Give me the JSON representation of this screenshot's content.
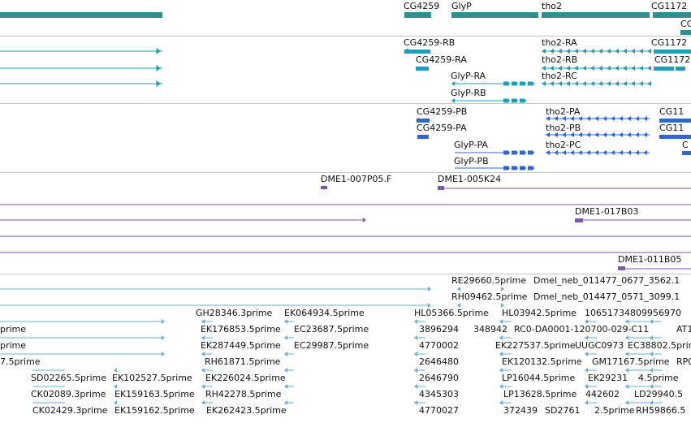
{
  "colors": {
    "gene": "#2f8f8f",
    "mrna": "#1aa0b8",
    "protein": "#3366cc",
    "clone": "#7a5aaa",
    "est": "#6aaedb",
    "separator": "#c8c8c8"
  },
  "tracks": [
    {
      "id": "genes",
      "features": [
        {
          "label": "CG4259",
          "color": "gene"
        },
        {
          "label": "GlyP",
          "color": "gene"
        },
        {
          "label": "tho2",
          "color": "gene"
        },
        {
          "label": "CG1172",
          "color": "gene"
        },
        {
          "label": "CG",
          "color": "gene"
        }
      ]
    },
    {
      "id": "transcripts",
      "features": [
        {
          "label": "CG4259-RB",
          "color": "mrna"
        },
        {
          "label": "CG4259-RA",
          "color": "mrna"
        },
        {
          "label": "GlyP-RA",
          "color": "mrna"
        },
        {
          "label": "GlyP-RB",
          "color": "mrna"
        },
        {
          "label": "tho2-RA",
          "color": "mrna"
        },
        {
          "label": "tho2-RB",
          "color": "mrna"
        },
        {
          "label": "tho2-RC",
          "color": "mrna"
        },
        {
          "label": "CG1172",
          "color": "mrna"
        },
        {
          "label": "CG1172",
          "color": "mrna"
        }
      ]
    },
    {
      "id": "proteins",
      "features": [
        {
          "label": "CG4259-PB",
          "color": "protein"
        },
        {
          "label": "CG4259-PA",
          "color": "protein"
        },
        {
          "label": "GlyP-PA",
          "color": "protein"
        },
        {
          "label": "GlyP-PB",
          "color": "protein"
        },
        {
          "label": "tho2-PA",
          "color": "protein"
        },
        {
          "label": "tho2-PB",
          "color": "protein"
        },
        {
          "label": "tho2-PC",
          "color": "protein"
        },
        {
          "label": "CG11",
          "color": "protein"
        },
        {
          "label": "CG11",
          "color": "protein"
        },
        {
          "label": "C",
          "color": "protein"
        }
      ]
    },
    {
      "id": "clones",
      "features": [
        {
          "label": "DME1-007P05.F",
          "color": "clone"
        },
        {
          "label": "DME1-005K24",
          "color": "clone"
        },
        {
          "label": "DME1-017B03",
          "color": "clone"
        },
        {
          "label": "DME1-011B05",
          "color": "clone"
        }
      ]
    },
    {
      "id": "ests",
      "features": [
        {
          "label": "RE29660.5prime",
          "color": "est"
        },
        {
          "label": "Dmel_neb_011477_0677_3562.1",
          "color": "est"
        },
        {
          "label": "RH09462.5prime",
          "color": "est"
        },
        {
          "label": "Dmel_neb_014477_0571_3099.1",
          "color": "est"
        },
        {
          "label": "GH28346.3prime",
          "color": "est"
        },
        {
          "label": "EK064934.5prime",
          "color": "est"
        },
        {
          "label": "HL05366.5prime",
          "color": "est"
        },
        {
          "label": "HL03942.5prime",
          "color": "est"
        },
        {
          "label": "10651734809956970",
          "color": "est"
        },
        {
          "label": "prime",
          "color": "est"
        },
        {
          "label": "EK176853.5prime",
          "color": "est"
        },
        {
          "label": "EC23687.5prime",
          "color": "est"
        },
        {
          "label": "3896294",
          "color": "est"
        },
        {
          "label": "348942",
          "color": "est"
        },
        {
          "label": "RC0-DA0001-120700-029-C11",
          "color": "est"
        },
        {
          "label": "AT1",
          "color": "est"
        },
        {
          "label": "prime",
          "color": "est"
        },
        {
          "label": "EK287449.5prime",
          "color": "est"
        },
        {
          "label": "EC29987.5prime",
          "color": "est"
        },
        {
          "label": "4770002",
          "color": "est"
        },
        {
          "label": "EK227537.5prime",
          "color": "est"
        },
        {
          "label": "UUGC0973",
          "color": "est"
        },
        {
          "label": "EC38802.5prime",
          "color": "est"
        },
        {
          "label": "7.5prime",
          "color": "est"
        },
        {
          "label": "RH61871.5prime",
          "color": "est"
        },
        {
          "label": "2646480",
          "color": "est"
        },
        {
          "label": "EK120132.5prime",
          "color": "est"
        },
        {
          "label": "GM17167.5prime",
          "color": "est"
        },
        {
          "label": "RP0",
          "color": "est"
        },
        {
          "label": "SD02265.5prime",
          "color": "est"
        },
        {
          "label": "EK102527.5prime",
          "color": "est"
        },
        {
          "label": "EK226024.5prime",
          "color": "est"
        },
        {
          "label": "2646790",
          "color": "est"
        },
        {
          "label": "LP16044.5prime",
          "color": "est"
        },
        {
          "label": "EK29231",
          "color": "est"
        },
        {
          "label": "4.5prime",
          "color": "est"
        },
        {
          "label": "CK02089.3prime",
          "color": "est"
        },
        {
          "label": "EK159163.5prime",
          "color": "est"
        },
        {
          "label": "RH42278.5prime",
          "color": "est"
        },
        {
          "label": "4345303",
          "color": "est"
        },
        {
          "label": "LP13628.5prime",
          "color": "est"
        },
        {
          "label": "442602",
          "color": "est"
        },
        {
          "label": "LD29940.5",
          "color": "est"
        },
        {
          "label": "CK02429.3prime",
          "color": "est"
        },
        {
          "label": "EK159162.5prime",
          "color": "est"
        },
        {
          "label": "EK262423.5prime",
          "color": "est"
        },
        {
          "label": "4770027",
          "color": "est"
        },
        {
          "label": "372439",
          "color": "est"
        },
        {
          "label": "SD2761",
          "color": "est"
        },
        {
          "label": "2.5prime",
          "color": "est"
        },
        {
          "label": "RH59866.5",
          "color": "est"
        }
      ]
    }
  ]
}
